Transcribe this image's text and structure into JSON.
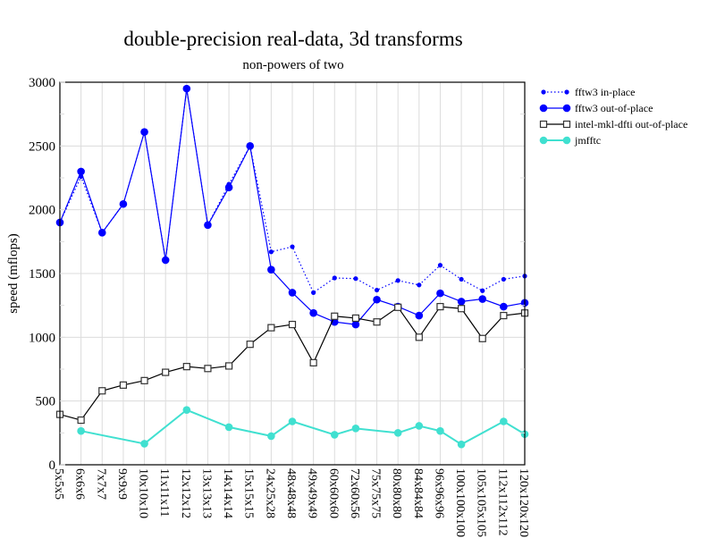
{
  "chart_data": {
    "type": "line",
    "title": "double-precision real-data, 3d transforms",
    "subtitle": "non-powers of two",
    "xlabel": "",
    "ylabel": "speed (mflops)",
    "ylim": [
      0,
      3000
    ],
    "yticks": [
      0,
      500,
      1000,
      1500,
      2000,
      2500,
      3000
    ],
    "grid": true,
    "legend_position": "right",
    "categories": [
      "5x5x5",
      "6x6x6",
      "7x7x7",
      "9x9x9",
      "10x10x10",
      "11x11x11",
      "12x12x12",
      "13x13x13",
      "14x14x14",
      "15x15x15",
      "24x25x28",
      "48x48x48",
      "49x49x49",
      "60x60x60",
      "72x60x56",
      "75x75x75",
      "80x80x80",
      "84x84x84",
      "96x96x96",
      "100x100x100",
      "105x105x105",
      "112x112x112",
      "120x120x120"
    ],
    "series": [
      {
        "name": "fftw3 in-place",
        "color": "#0000ff",
        "style": "dotted",
        "marker": "small-dot",
        "values": [
          1900,
          2260,
          1820,
          2045,
          2610,
          1605,
          2950,
          1880,
          2200,
          2500,
          1670,
          1710,
          1350,
          1465,
          1460,
          1370,
          1445,
          1410,
          1565,
          1455,
          1365,
          1455,
          1480
        ]
      },
      {
        "name": "fftw3 out-of-place",
        "color": "#0000ff",
        "style": "solid",
        "marker": "dot",
        "values": [
          1900,
          2300,
          1820,
          2045,
          2610,
          1605,
          2950,
          1880,
          2175,
          2500,
          1530,
          1350,
          1190,
          1120,
          1100,
          1295,
          1240,
          1170,
          1345,
          1280,
          1300,
          1240,
          1270
        ]
      },
      {
        "name": "intel-mkl-dfti out-of-place",
        "color": "#000000",
        "style": "solid",
        "marker": "square",
        "values": [
          395,
          350,
          580,
          625,
          660,
          725,
          770,
          755,
          775,
          945,
          1075,
          1100,
          800,
          1165,
          1150,
          1120,
          1235,
          1000,
          1240,
          1225,
          990,
          1170,
          1190
        ]
      },
      {
        "name": "jmfftc",
        "color": "#40e0d0",
        "style": "solid",
        "marker": "dot",
        "values": [
          null,
          265,
          null,
          null,
          165,
          null,
          430,
          null,
          295,
          null,
          225,
          340,
          null,
          235,
          285,
          null,
          250,
          305,
          265,
          160,
          null,
          340,
          240
        ]
      }
    ]
  }
}
